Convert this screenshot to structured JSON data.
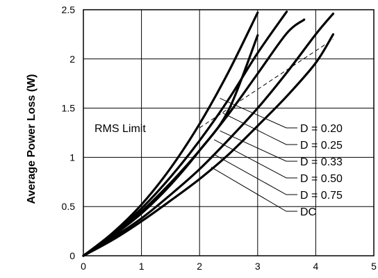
{
  "chart_data": {
    "type": "line",
    "title": "",
    "xlabel": "",
    "ylabel": "Average Power Loss (W)",
    "xlim": [
      0,
      5
    ],
    "ylim": [
      0,
      2.5
    ],
    "x_ticks": [
      "0",
      "1",
      "2",
      "3",
      "4",
      "5"
    ],
    "y_ticks": [
      "0",
      "0.5",
      "1",
      "1.5",
      "2",
      "2.5"
    ],
    "grid": true,
    "line_color": "#000000",
    "series": [
      {
        "name": "D = 0.20",
        "x": [
          0,
          0.5,
          1,
          1.5,
          2,
          2.5,
          3.0
        ],
        "y": [
          0,
          0.23,
          0.52,
          0.89,
          1.34,
          1.87,
          2.47
        ]
      },
      {
        "name": "D = 0.25",
        "x": [
          0,
          0.5,
          1,
          1.5,
          2,
          2.5,
          3.0,
          3.5
        ],
        "y": [
          0,
          0.22,
          0.48,
          0.8,
          1.17,
          1.59,
          2.06,
          2.48
        ]
      },
      {
        "name": "D = 0.33",
        "x": [
          0,
          0.5,
          1,
          1.5,
          2,
          2.5,
          3.0,
          3.5,
          3.8
        ],
        "y": [
          0,
          0.21,
          0.45,
          0.74,
          1.07,
          1.44,
          1.85,
          2.26,
          2.4
        ]
      },
      {
        "name": "D = 0.50",
        "x": [
          0,
          0.5,
          1,
          1.5,
          2,
          2.5,
          3.0
        ],
        "y": [
          0,
          0.2,
          0.43,
          0.72,
          1.07,
          1.48,
          2.24
        ]
      },
      {
        "name": "D = 0.75",
        "x": [
          0,
          0.5,
          1,
          1.5,
          2,
          2.5,
          3.0,
          3.5,
          4.0,
          4.3
        ],
        "y": [
          0,
          0.18,
          0.38,
          0.62,
          0.88,
          1.18,
          1.5,
          1.86,
          2.25,
          2.46
        ]
      },
      {
        "name": "DC",
        "x": [
          0,
          0.5,
          1,
          1.5,
          2,
          2.5,
          3.0,
          3.5,
          4.0,
          4.3
        ],
        "y": [
          0,
          0.16,
          0.35,
          0.56,
          0.78,
          1.03,
          1.32,
          1.62,
          1.96,
          2.25
        ]
      }
    ],
    "rms_limit": {
      "label": "RMS Limit",
      "x": [
        2.0,
        4.3
      ],
      "y": [
        1.3,
        2.2
      ]
    },
    "annotations": [
      {
        "label": "D = 0.20",
        "from": [
          2.35,
          1.6
        ]
      },
      {
        "label": "D = 0.25",
        "from": [
          2.4,
          1.45
        ]
      },
      {
        "label": "D = 0.33",
        "from": [
          2.35,
          1.27
        ]
      },
      {
        "label": "D = 0.50",
        "from": [
          2.25,
          1.18
        ]
      },
      {
        "label": "D = 0.75",
        "from": [
          2.25,
          1.03
        ]
      },
      {
        "label": "DC",
        "from": [
          2.2,
          0.9
        ]
      }
    ]
  }
}
